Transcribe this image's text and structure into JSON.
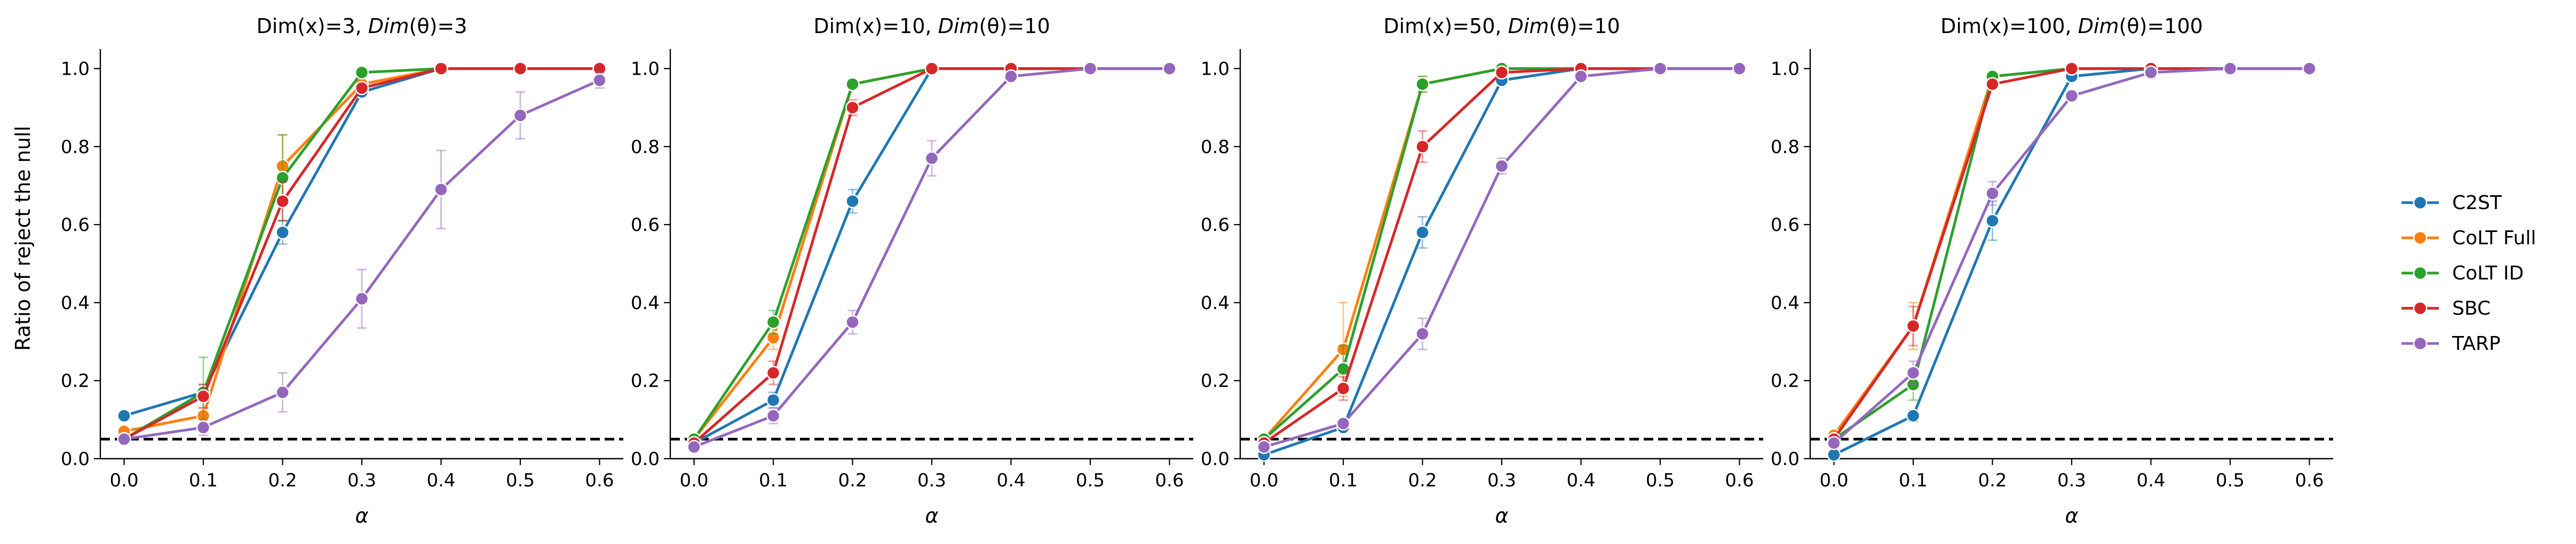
{
  "chart_data": {
    "type": "line",
    "shared": {
      "x": [
        0.0,
        0.1,
        0.2,
        0.3,
        0.4,
        0.5,
        0.6
      ],
      "xlabel": "α",
      "ylabel": "Ratio of reject the null",
      "xlim": [
        -0.03,
        0.63
      ],
      "ylim": [
        0.0,
        1.05
      ],
      "xticks": [
        0.0,
        0.1,
        0.2,
        0.3,
        0.4,
        0.5,
        0.6
      ],
      "xtick_labels": [
        "0.0",
        "0.1",
        "0.2",
        "0.3",
        "0.4",
        "0.5",
        "0.6"
      ],
      "yticks": [
        0.0,
        0.2,
        0.4,
        0.6,
        0.8,
        1.0
      ],
      "ytick_labels": [
        "0.0",
        "0.2",
        "0.4",
        "0.6",
        "0.8",
        "1.0"
      ],
      "reference_line": 0.05,
      "legend_position": "right"
    },
    "legend": [
      {
        "name": "C2ST",
        "color": "#1f77b4"
      },
      {
        "name": "CoLT Full",
        "color": "#ff7f0e"
      },
      {
        "name": "CoLT ID",
        "color": "#2ca02c"
      },
      {
        "name": "SBC",
        "color": "#d62728"
      },
      {
        "name": "TARP",
        "color": "#9467bd"
      }
    ],
    "panels": [
      {
        "title_left": "Dim(x)=3, ",
        "title_italic": "Dim",
        "title_theta": "(θ)",
        "title_right": "=3",
        "series": [
          {
            "name": "C2ST",
            "values": [
              0.11,
              0.17,
              0.58,
              0.94,
              1.0,
              1.0,
              1.0
            ],
            "err": [
              0.01,
              0.02,
              0.03,
              0.01,
              0,
              0,
              0
            ]
          },
          {
            "name": "CoLT Full",
            "values": [
              0.07,
              0.11,
              0.75,
              0.96,
              1.0,
              1.0,
              1.0
            ],
            "err": [
              0.01,
              0.02,
              0.08,
              0.01,
              0,
              0,
              0
            ]
          },
          {
            "name": "CoLT ID",
            "values": [
              0.05,
              0.17,
              0.72,
              0.99,
              1.0,
              1.0,
              1.0
            ],
            "err": [
              0.01,
              0.09,
              0.11,
              0.01,
              0,
              0,
              0
            ]
          },
          {
            "name": "SBC",
            "values": [
              0.05,
              0.16,
              0.66,
              0.95,
              1.0,
              1.0,
              1.0
            ],
            "err": [
              0.01,
              0.03,
              0.05,
              0.01,
              0,
              0,
              0
            ]
          },
          {
            "name": "TARP",
            "values": [
              0.05,
              0.08,
              0.17,
              0.41,
              0.69,
              0.88,
              0.97
            ],
            "err": [
              0.01,
              0.02,
              0.05,
              0.075,
              0.1,
              0.06,
              0.02
            ]
          }
        ]
      },
      {
        "title_left": "Dim(x)=10, ",
        "title_italic": "Dim",
        "title_theta": "(θ)",
        "title_right": "=10",
        "series": [
          {
            "name": "C2ST",
            "values": [
              0.04,
              0.15,
              0.66,
              1.0,
              1.0,
              1.0,
              1.0
            ],
            "err": [
              0.01,
              0.02,
              0.03,
              0,
              0,
              0,
              0
            ]
          },
          {
            "name": "CoLT Full",
            "values": [
              0.05,
              0.31,
              0.96,
              1.0,
              1.0,
              1.0,
              1.0
            ],
            "err": [
              0.01,
              0.03,
              0.01,
              0,
              0,
              0,
              0
            ]
          },
          {
            "name": "CoLT ID",
            "values": [
              0.05,
              0.35,
              0.96,
              1.0,
              1.0,
              1.0,
              1.0
            ],
            "err": [
              0.01,
              0.03,
              0.01,
              0,
              0,
              0,
              0
            ]
          },
          {
            "name": "SBC",
            "values": [
              0.04,
              0.22,
              0.9,
              1.0,
              1.0,
              1.0,
              1.0
            ],
            "err": [
              0.01,
              0.03,
              0.02,
              0,
              0,
              0,
              0
            ]
          },
          {
            "name": "TARP",
            "values": [
              0.03,
              0.11,
              0.35,
              0.77,
              0.98,
              1.0,
              1.0
            ],
            "err": [
              0.01,
              0.02,
              0.03,
              0.045,
              0.01,
              0,
              0
            ]
          }
        ]
      },
      {
        "title_left": "Dim(x)=50, ",
        "title_italic": "Dim",
        "title_theta": "(θ)",
        "title_right": "=10",
        "series": [
          {
            "name": "C2ST",
            "values": [
              0.01,
              0.08,
              0.58,
              0.97,
              1.0,
              1.0,
              1.0
            ],
            "err": [
              0.005,
              0.01,
              0.04,
              0.01,
              0,
              0,
              0
            ]
          },
          {
            "name": "CoLT Full",
            "values": [
              0.05,
              0.28,
              0.96,
              1.0,
              1.0,
              1.0,
              1.0
            ],
            "err": [
              0.01,
              0.12,
              0.02,
              0,
              0,
              0,
              0
            ]
          },
          {
            "name": "CoLT ID",
            "values": [
              0.05,
              0.23,
              0.96,
              1.0,
              1.0,
              1.0,
              1.0
            ],
            "err": [
              0.01,
              0.06,
              0.02,
              0,
              0,
              0,
              0
            ]
          },
          {
            "name": "SBC",
            "values": [
              0.04,
              0.18,
              0.8,
              0.99,
              1.0,
              1.0,
              1.0
            ],
            "err": [
              0.01,
              0.03,
              0.04,
              0.01,
              0,
              0,
              0
            ]
          },
          {
            "name": "TARP",
            "values": [
              0.03,
              0.09,
              0.32,
              0.75,
              0.98,
              1.0,
              1.0
            ],
            "err": [
              0.01,
              0.015,
              0.04,
              0.02,
              0.01,
              0,
              0
            ]
          }
        ]
      },
      {
        "title_left": "Dim(x)=100, ",
        "title_italic": "Dim",
        "title_theta": "(θ)",
        "title_right": "=100",
        "series": [
          {
            "name": "C2ST",
            "values": [
              0.01,
              0.11,
              0.61,
              0.98,
              1.0,
              1.0,
              1.0
            ],
            "err": [
              0.005,
              0.015,
              0.05,
              0.01,
              0,
              0,
              0
            ]
          },
          {
            "name": "CoLT Full",
            "values": [
              0.06,
              0.34,
              0.98,
              1.0,
              1.0,
              1.0,
              1.0
            ],
            "err": [
              0.01,
              0.06,
              0.01,
              0,
              0,
              0,
              0
            ]
          },
          {
            "name": "CoLT ID",
            "values": [
              0.05,
              0.19,
              0.98,
              1.0,
              1.0,
              1.0,
              1.0
            ],
            "err": [
              0.01,
              0.04,
              0.01,
              0,
              0,
              0,
              0
            ]
          },
          {
            "name": "SBC",
            "values": [
              0.05,
              0.34,
              0.96,
              1.0,
              1.0,
              1.0,
              1.0
            ],
            "err": [
              0.01,
              0.05,
              0.01,
              0,
              0,
              0,
              0
            ]
          },
          {
            "name": "TARP",
            "values": [
              0.04,
              0.22,
              0.68,
              0.93,
              0.99,
              1.0,
              1.0
            ],
            "err": [
              0.01,
              0.03,
              0.03,
              0.01,
              0.005,
              0,
              0
            ]
          }
        ]
      }
    ]
  }
}
